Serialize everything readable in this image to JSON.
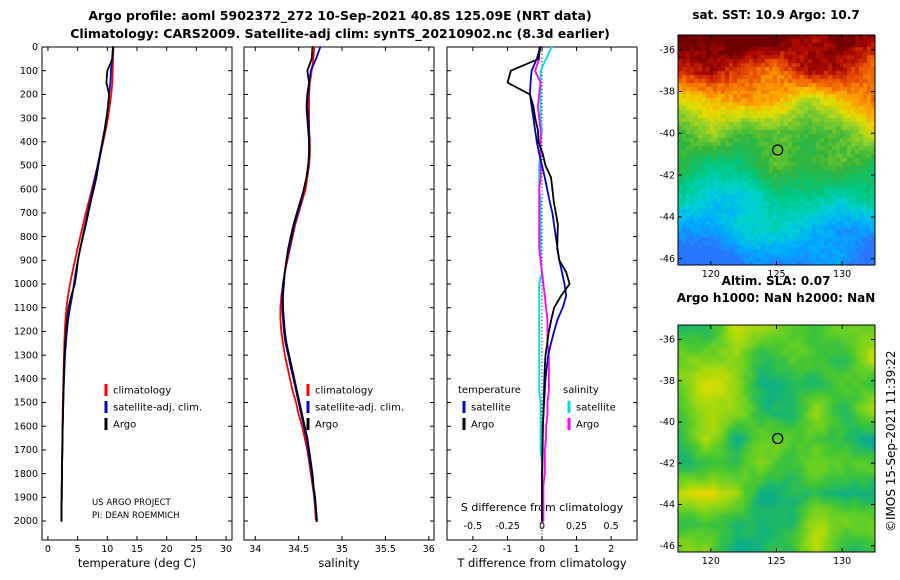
{
  "titles": {
    "line1": "Argo profile: aoml 5902372_272 10-Sep-2021 40.8S 125.09E (NRT data)",
    "line2": "Climatology: CARS2009. Satellite-adj clim: synTS_20210902.nc (8.3d earlier)"
  },
  "watermark": "©IMOS 15-Sep-2021 11:39:22",
  "annotations": {
    "project": "US ARGO PROJECT",
    "pi": "PI: DEAN ROEMMICH"
  },
  "chart_data": [
    {
      "name": "temperature-profile",
      "type": "line",
      "xlabel": "temperature (deg C)",
      "xlim": [
        -1,
        31
      ],
      "xticks": [
        0,
        5,
        10,
        15,
        20,
        25,
        30
      ],
      "ylim": [
        0,
        2080
      ],
      "yticks": [
        0,
        100,
        200,
        300,
        400,
        500,
        600,
        700,
        800,
        900,
        1000,
        1100,
        1200,
        1300,
        1400,
        1500,
        1600,
        1700,
        1800,
        1900,
        2000
      ],
      "legend_position": "lower-left",
      "depths": [
        0,
        50,
        100,
        150,
        200,
        250,
        300,
        350,
        400,
        450,
        500,
        550,
        600,
        650,
        700,
        750,
        800,
        850,
        900,
        950,
        1000,
        1050,
        1100,
        1150,
        1200,
        1250,
        1300,
        1350,
        1400,
        1450,
        1500,
        1550,
        1600,
        1650,
        1700,
        1750,
        1800,
        1850,
        1900,
        1950,
        2000
      ],
      "series": [
        {
          "name": "climatology",
          "color": "#ff0000",
          "values": [
            11.0,
            10.95,
            10.9,
            10.85,
            10.65,
            10.4,
            10.1,
            9.72,
            9.3,
            8.85,
            8.38,
            7.9,
            7.4,
            6.9,
            6.4,
            5.92,
            5.45,
            5.0,
            4.55,
            4.12,
            3.72,
            3.38,
            3.12,
            2.95,
            2.84,
            2.76,
            2.7,
            2.65,
            2.6,
            2.56,
            2.52,
            2.49,
            2.46,
            2.43,
            2.41,
            2.38,
            2.36,
            2.33,
            2.31,
            2.29,
            2.27
          ]
        },
        {
          "name": "satellite-adj. clim.",
          "color": "#0000cd",
          "values": [
            10.95,
            10.8,
            10.6,
            10.52,
            10.3,
            10.1,
            9.85,
            9.52,
            9.15,
            8.77,
            8.38,
            7.98,
            7.55,
            7.12,
            6.7,
            6.27,
            5.85,
            5.45,
            5.05,
            4.7,
            4.37,
            4.08,
            3.72,
            3.4,
            3.19,
            3.02,
            2.88,
            2.79,
            2.7,
            2.64,
            2.58,
            2.53,
            2.49,
            2.45,
            2.43,
            2.39,
            2.37,
            2.33,
            2.31,
            2.29,
            2.27
          ]
        },
        {
          "name": "Argo",
          "color": "#000000",
          "values": [
            10.95,
            10.85,
            10.0,
            9.85,
            10.3,
            10.15,
            9.9,
            9.6,
            9.2,
            8.87,
            8.48,
            8.16,
            7.7,
            7.24,
            6.8,
            6.38,
            5.9,
            5.44,
            5.05,
            4.82,
            4.52,
            3.93,
            3.47,
            3.22,
            3.04,
            2.91,
            2.8,
            2.73,
            2.67,
            2.62,
            2.57,
            2.53,
            2.48,
            2.45,
            2.42,
            2.39,
            2.36,
            2.33,
            2.31,
            2.29,
            2.27
          ]
        }
      ]
    },
    {
      "name": "salinity-profile",
      "type": "line",
      "xlabel": "salinity",
      "xlim": [
        33.87,
        36.06
      ],
      "xticks": [
        34,
        34.5,
        35,
        35.5,
        36
      ],
      "ylim": [
        0,
        2080
      ],
      "yticks": [
        0,
        100,
        200,
        300,
        400,
        500,
        600,
        700,
        800,
        900,
        1000,
        1100,
        1200,
        1300,
        1400,
        1500,
        1600,
        1700,
        1800,
        1900,
        2000
      ],
      "legend_position": "lower-left",
      "depths": [
        0,
        50,
        100,
        150,
        200,
        250,
        300,
        350,
        400,
        450,
        500,
        550,
        600,
        650,
        700,
        750,
        800,
        850,
        900,
        950,
        1000,
        1050,
        1100,
        1150,
        1200,
        1250,
        1300,
        1350,
        1400,
        1450,
        1500,
        1550,
        1600,
        1650,
        1700,
        1750,
        1800,
        1850,
        1900,
        1950,
        2000
      ],
      "series": [
        {
          "name": "climatology",
          "color": "#ff0000",
          "values": [
            34.68,
            34.67,
            34.65,
            34.63,
            34.62,
            34.62,
            34.62,
            34.62,
            34.63,
            34.63,
            34.62,
            34.6,
            34.58,
            34.54,
            34.5,
            34.46,
            34.43,
            34.4,
            34.37,
            34.34,
            34.32,
            34.3,
            34.29,
            34.29,
            34.3,
            34.32,
            34.34,
            34.37,
            34.4,
            34.43,
            34.47,
            34.5,
            34.54,
            34.57,
            34.6,
            34.62,
            34.64,
            34.66,
            34.68,
            34.69,
            34.7
          ]
        },
        {
          "name": "satellite-adj. clim.",
          "color": "#0000cd",
          "values": [
            34.75,
            34.7,
            34.64,
            34.62,
            34.61,
            34.6,
            34.61,
            34.62,
            34.62,
            34.62,
            34.61,
            34.59,
            34.56,
            34.53,
            34.49,
            34.45,
            34.42,
            34.39,
            34.36,
            34.34,
            34.32,
            34.31,
            34.31,
            34.32,
            34.33,
            34.35,
            34.38,
            34.41,
            34.44,
            34.47,
            34.5,
            34.53,
            34.56,
            34.59,
            34.61,
            34.63,
            34.65,
            34.67,
            34.68,
            34.7,
            34.71
          ]
        },
        {
          "name": "Argo",
          "color": "#000000",
          "values": [
            34.66,
            34.65,
            34.6,
            34.62,
            34.6,
            34.59,
            34.6,
            34.61,
            34.62,
            34.62,
            34.61,
            34.59,
            34.56,
            34.52,
            34.48,
            34.44,
            34.41,
            34.38,
            34.36,
            34.34,
            34.33,
            34.32,
            34.32,
            34.33,
            34.34,
            34.36,
            34.39,
            34.42,
            34.45,
            34.48,
            34.51,
            34.54,
            34.57,
            34.6,
            34.62,
            34.64,
            34.66,
            34.67,
            34.69,
            34.7,
            34.71
          ]
        }
      ]
    },
    {
      "name": "difference-profile",
      "type": "line",
      "xlabel": "T difference from climatology",
      "x2label": "S difference from climatology",
      "xlim": [
        -2.75,
        2.75
      ],
      "xticks": [
        -2,
        -1,
        0,
        1,
        2
      ],
      "x2ticks": [
        -0.5,
        -0.25,
        0,
        0.25,
        0.5
      ],
      "s_to_t_scale": 4,
      "zero_line": "dotted",
      "ylim": [
        0,
        2080
      ],
      "yticks": [
        0,
        100,
        200,
        300,
        400,
        500,
        600,
        700,
        800,
        900,
        1000,
        1100,
        1200,
        1300,
        1400,
        1500,
        1600,
        1700,
        1800,
        1900,
        2000
      ],
      "depths": [
        0,
        50,
        100,
        150,
        200,
        250,
        300,
        350,
        400,
        450,
        500,
        550,
        600,
        650,
        700,
        750,
        800,
        850,
        900,
        950,
        1000,
        1050,
        1100,
        1150,
        1200,
        1250,
        1300,
        1350,
        1400,
        1450,
        1500,
        1550,
        1600,
        1650,
        1700,
        1750,
        1800,
        1850,
        1900,
        1950,
        2000
      ],
      "series": [
        {
          "name": "salinity satellite",
          "group": "salinity",
          "label": "satellite",
          "color": "#00dce6",
          "scale": 4,
          "values": [
            0.07,
            0.03,
            -0.01,
            -0.01,
            -0.01,
            -0.01,
            -0.01,
            0.0,
            -0.01,
            -0.01,
            -0.02,
            -0.02,
            -0.02,
            -0.01,
            -0.01,
            -0.01,
            -0.01,
            -0.01,
            -0.01,
            0.0,
            -0.02,
            -0.02,
            -0.02,
            -0.02,
            -0.02,
            -0.02,
            -0.02,
            -0.02,
            -0.02,
            -0.02,
            -0.01,
            -0.01,
            -0.01,
            -0.01,
            -0.01,
            0.0,
            0.0,
            0.0,
            0.0,
            0.0,
            0.0
          ]
        },
        {
          "name": "salinity Argo",
          "group": "salinity",
          "label": "Argo",
          "color": "#ff00ff",
          "scale": 4,
          "values": [
            -0.02,
            -0.02,
            -0.05,
            -0.01,
            -0.02,
            -0.03,
            -0.02,
            -0.01,
            -0.01,
            -0.01,
            -0.01,
            -0.01,
            -0.02,
            -0.02,
            -0.02,
            -0.02,
            -0.02,
            -0.02,
            -0.01,
            0.0,
            0.01,
            0.02,
            0.03,
            0.04,
            0.04,
            0.04,
            0.05,
            0.05,
            0.05,
            0.05,
            0.04,
            0.04,
            0.03,
            0.03,
            0.02,
            0.02,
            0.02,
            0.01,
            0.01,
            0.01,
            0.01
          ]
        },
        {
          "name": "temperature satellite",
          "group": "temperature",
          "label": "satellite",
          "color": "#0000cd",
          "scale": 1,
          "values": [
            -0.05,
            -0.15,
            -0.3,
            -0.33,
            -0.35,
            -0.3,
            -0.25,
            -0.2,
            -0.15,
            -0.08,
            0.0,
            0.08,
            0.15,
            0.22,
            0.3,
            0.35,
            0.4,
            0.45,
            0.5,
            0.58,
            0.65,
            0.7,
            0.6,
            0.45,
            0.35,
            0.26,
            0.18,
            0.14,
            0.1,
            0.08,
            0.06,
            0.04,
            0.03,
            0.02,
            0.02,
            0.01,
            0.01,
            0.0,
            0.0,
            0.0,
            0.0
          ]
        },
        {
          "name": "temperature Argo",
          "group": "temperature",
          "label": "Argo",
          "color": "#000000",
          "scale": 1,
          "values": [
            -0.05,
            -0.1,
            -0.9,
            -1.0,
            -0.35,
            -0.25,
            -0.2,
            -0.12,
            -0.1,
            0.02,
            0.1,
            0.26,
            0.3,
            0.34,
            0.4,
            0.46,
            0.45,
            0.44,
            0.5,
            0.7,
            0.8,
            0.55,
            0.35,
            0.27,
            0.2,
            0.15,
            0.1,
            0.08,
            0.07,
            0.06,
            0.05,
            0.04,
            0.02,
            0.02,
            0.01,
            0.01,
            0.0,
            0.0,
            0.0,
            0.0,
            0.0
          ]
        }
      ],
      "legend_groups": [
        {
          "header": "temperature",
          "items": [
            {
              "label": "satellite",
              "color": "#0000cd"
            },
            {
              "label": "Argo",
              "color": "#000000"
            }
          ]
        },
        {
          "header": "salinity",
          "items": [
            {
              "label": "satellite",
              "color": "#00dce6"
            },
            {
              "label": "Argo",
              "color": "#ff00ff"
            }
          ]
        }
      ]
    },
    {
      "name": "sst-map",
      "type": "heatmap",
      "title": "sat. SST: 10.9 Argo: 10.7",
      "lon_range": [
        117.5,
        132.5
      ],
      "lat_range": [
        -35.3,
        -46.3
      ],
      "xticks": [
        120,
        125,
        130
      ],
      "yticks": [
        -36,
        -38,
        -40,
        -42,
        -44,
        -46
      ],
      "marker": {
        "lon": 125.09,
        "lat": -40.8
      },
      "gradient": "warm-north-to-cool-south",
      "palette": [
        [
          0,
          "#2878ff"
        ],
        [
          0.1,
          "#00aaff"
        ],
        [
          0.2,
          "#00d2d2"
        ],
        [
          0.32,
          "#00c882"
        ],
        [
          0.45,
          "#32b43c"
        ],
        [
          0.58,
          "#96d228"
        ],
        [
          0.67,
          "#e6dc00"
        ],
        [
          0.76,
          "#ffa000"
        ],
        [
          0.86,
          "#e64600"
        ],
        [
          0.94,
          "#b00a00"
        ],
        [
          1,
          "#6e0000"
        ]
      ]
    },
    {
      "name": "sla-map",
      "type": "heatmap",
      "title": "Altim. SLA: 0.07",
      "title2": "Argo h1000: NaN h2000: NaN",
      "lon_range": [
        117.5,
        132.5
      ],
      "lat_range": [
        -35.3,
        -46.3
      ],
      "xticks": [
        120,
        125,
        130
      ],
      "yticks": [
        -36,
        -38,
        -40,
        -42,
        -44,
        -46
      ],
      "marker": {
        "lon": 125.09,
        "lat": -40.8
      },
      "gradient": "mottled-noise-around-zero",
      "palette": [
        [
          0,
          "#00a0b4"
        ],
        [
          0.2,
          "#14b478"
        ],
        [
          0.4,
          "#46c832"
        ],
        [
          0.55,
          "#78d21e"
        ],
        [
          0.7,
          "#b4dc0a"
        ],
        [
          0.85,
          "#e6dc00"
        ],
        [
          1,
          "#ffc800"
        ]
      ]
    }
  ]
}
